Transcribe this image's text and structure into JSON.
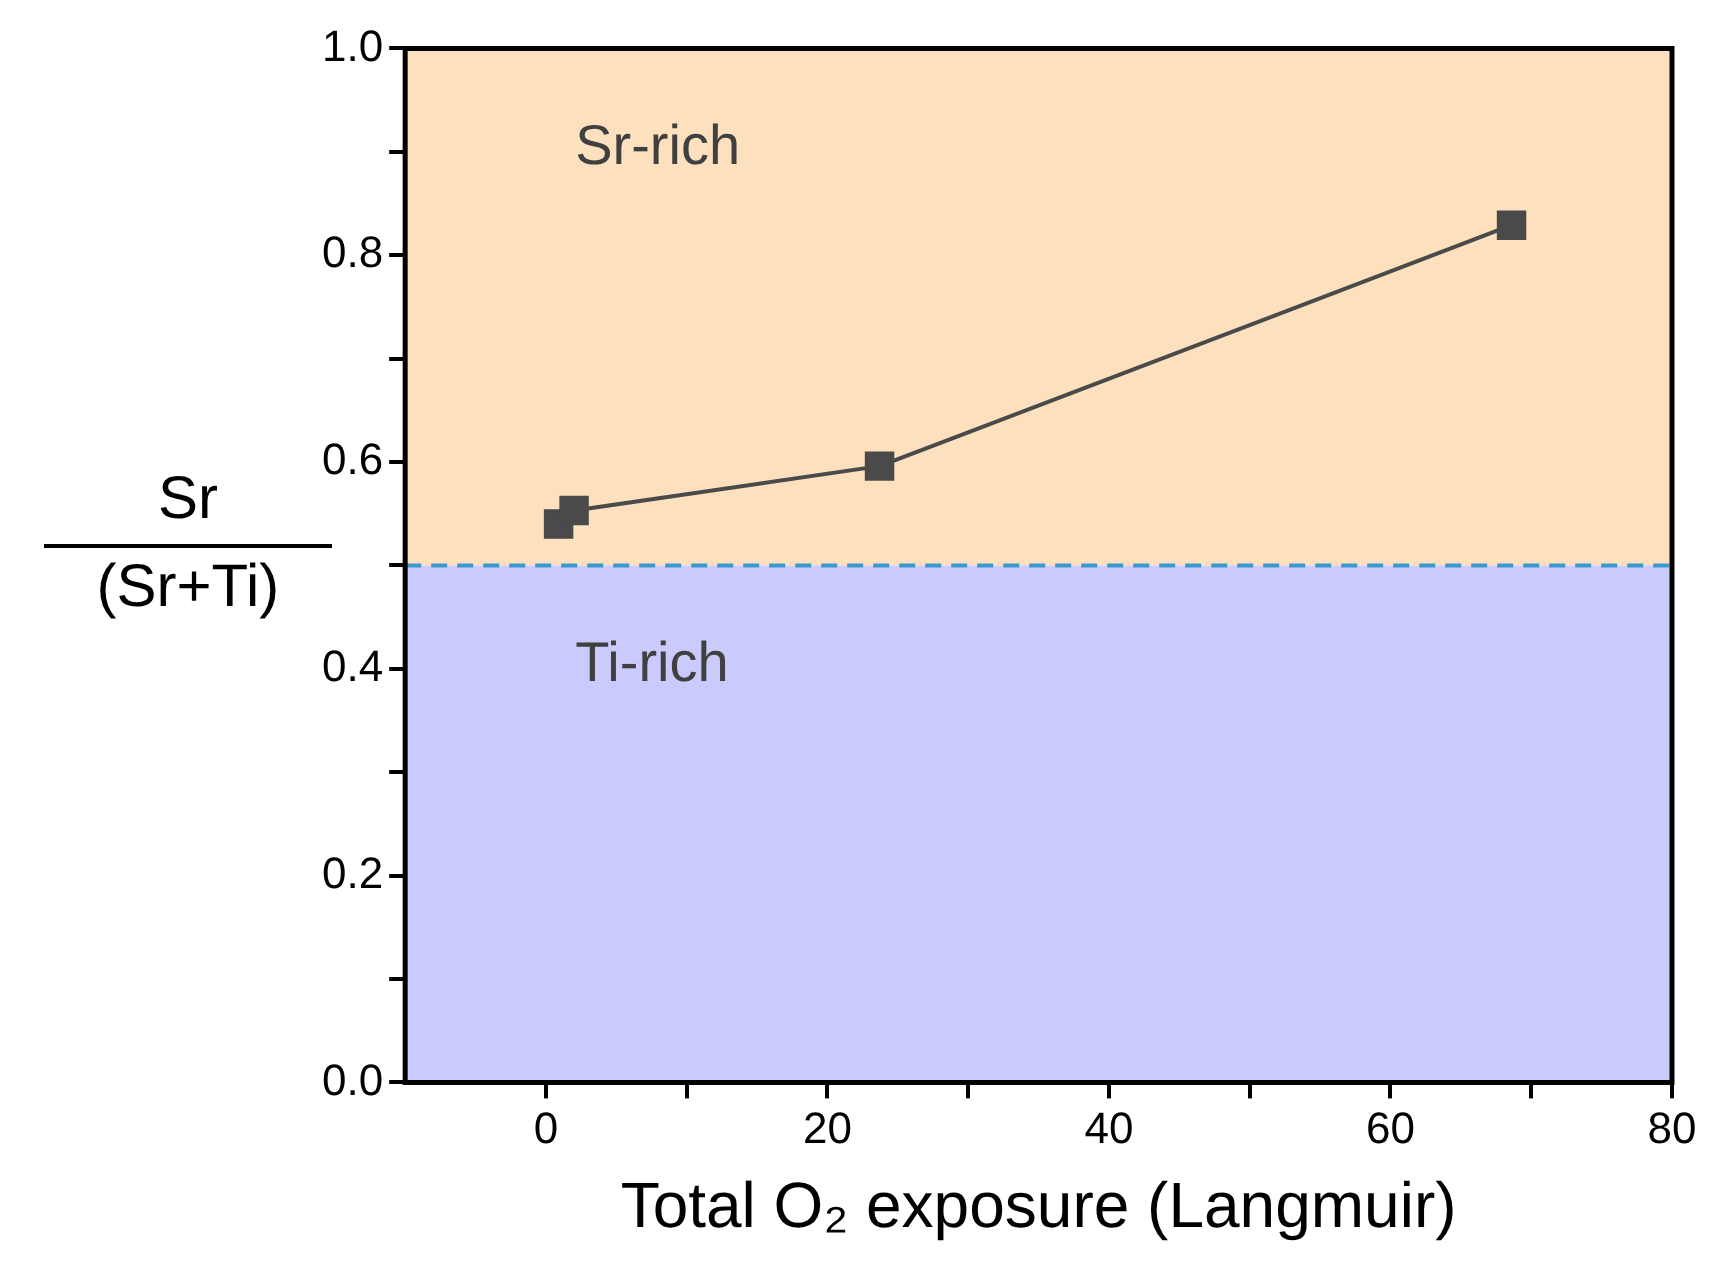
{
  "chart_data": {
    "type": "line",
    "xlabel": "Total O₂ exposure (Langmuir)",
    "ylabel": "Sr\n(Sr+Ti)",
    "x": [
      0.9,
      2.0,
      23.7,
      68.6
    ],
    "series": [
      {
        "color": "#4a4a4a",
        "values": [
          0.54,
          0.553,
          0.596,
          0.829
        ]
      }
    ],
    "marker": "square",
    "line_style": "solid",
    "xlim": [
      -10,
      80
    ],
    "xticks": [
      0,
      {
        "value": 10,
        "label": null
      },
      20,
      {
        "value": 30,
        "label": null
      },
      40,
      {
        "value": 50,
        "label": null
      },
      60,
      {
        "value": 70,
        "label": null
      },
      80
    ],
    "ylim": [
      0,
      1
    ],
    "yticks": [
      {
        "value": 0,
        "label": "0.0"
      },
      {
        "value": 0.1,
        "label": null
      },
      0.2,
      {
        "value": 0.3,
        "label": null
      },
      0.4,
      {
        "value": 0.5,
        "label": null
      },
      0.6,
      {
        "value": 0.7,
        "label": null
      },
      0.8,
      {
        "value": 0.9,
        "label": null
      },
      {
        "value": 1,
        "label": "1.0"
      }
    ],
    "bands": [
      {
        "axis": "y",
        "from": 0.5,
        "to": 1,
        "label": "Sr-rich",
        "color": "#fde0bd"
      },
      {
        "axis": "y",
        "from": 0,
        "to": 0.5,
        "label": "Ti-rich",
        "color": "#cacafc"
      }
    ],
    "ref_lines": [
      {
        "axis": "y",
        "value": 0.5,
        "label": null,
        "color": "#3a9ad0",
        "line_style": "dashed"
      }
    ],
    "grid": false,
    "legend": false
  }
}
